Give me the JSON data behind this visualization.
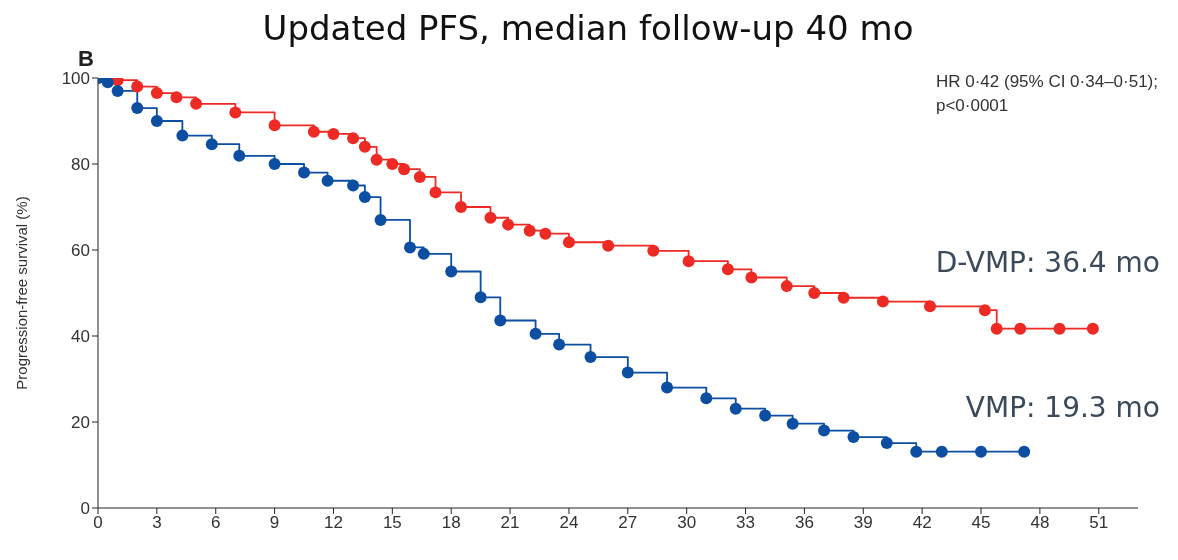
{
  "chart_data": {
    "type": "step",
    "title": "Updated PFS, median follow-up 40 mo",
    "ylabel": "Progression-free survival (%)",
    "annotations": [
      "B",
      "HR 0·42 (95% CI 0·34–0·51);",
      "p<0·0001"
    ],
    "xlim": [
      0,
      53
    ],
    "xticks": [
      0,
      3,
      6,
      9,
      12,
      15,
      18,
      21,
      24,
      27,
      30,
      33,
      36,
      39,
      42,
      45,
      48,
      51
    ],
    "ylim": [
      0,
      100
    ],
    "yticks": [
      0,
      20,
      40,
      60,
      80,
      100
    ],
    "grid": false,
    "legend": false,
    "marker": "circle",
    "line_style": "solid",
    "series": [
      {
        "name": "D-VMP: 36.4 mo",
        "color": "#ee2a24",
        "x": [
          0,
          1,
          2,
          3,
          4,
          5,
          7,
          9,
          11,
          12,
          13,
          13.6,
          14.2,
          15,
          15.6,
          16.4,
          17.2,
          18.5,
          20,
          20.9,
          22,
          22.8,
          24,
          26,
          28.3,
          30.1,
          32.1,
          33.3,
          35.1,
          36.5,
          38,
          40,
          42.4,
          45.2,
          45.8,
          47,
          49,
          50.7
        ],
        "values": [
          100,
          99.5,
          98,
          96.5,
          95.5,
          94,
          92,
          89,
          87.5,
          87,
          86,
          84,
          81,
          80,
          78.8,
          77,
          73.4,
          70,
          67.5,
          65.9,
          64.5,
          63.8,
          61.8,
          61,
          59.8,
          57.4,
          55.5,
          53.6,
          51.6,
          50,
          48.9,
          48,
          46.9,
          46,
          41.7,
          41.7,
          41.7,
          41.7
        ]
      },
      {
        "name": "VMP: 19.3 mo",
        "color": "#0b4ea2",
        "x": [
          0,
          0.5,
          1,
          2,
          3,
          4.3,
          5.8,
          7.2,
          9,
          10.5,
          11.7,
          13,
          13.6,
          14.4,
          15.9,
          16.6,
          18,
          19.5,
          20.5,
          22.3,
          23.5,
          25.1,
          27,
          29,
          31,
          32.5,
          34,
          35.4,
          37,
          38.5,
          40.2,
          41.7,
          43,
          45,
          47.2
        ],
        "values": [
          100,
          99,
          97,
          93,
          90,
          86.6,
          84.6,
          81.9,
          80,
          78,
          76.1,
          75,
          72.3,
          67,
          60.6,
          59.1,
          55,
          49,
          43.6,
          40.5,
          38,
          35.1,
          31.5,
          28,
          25.5,
          23.1,
          21.5,
          19.6,
          18,
          16.5,
          15.1,
          13.1,
          13.1,
          13.1,
          13.1
        ]
      }
    ]
  }
}
